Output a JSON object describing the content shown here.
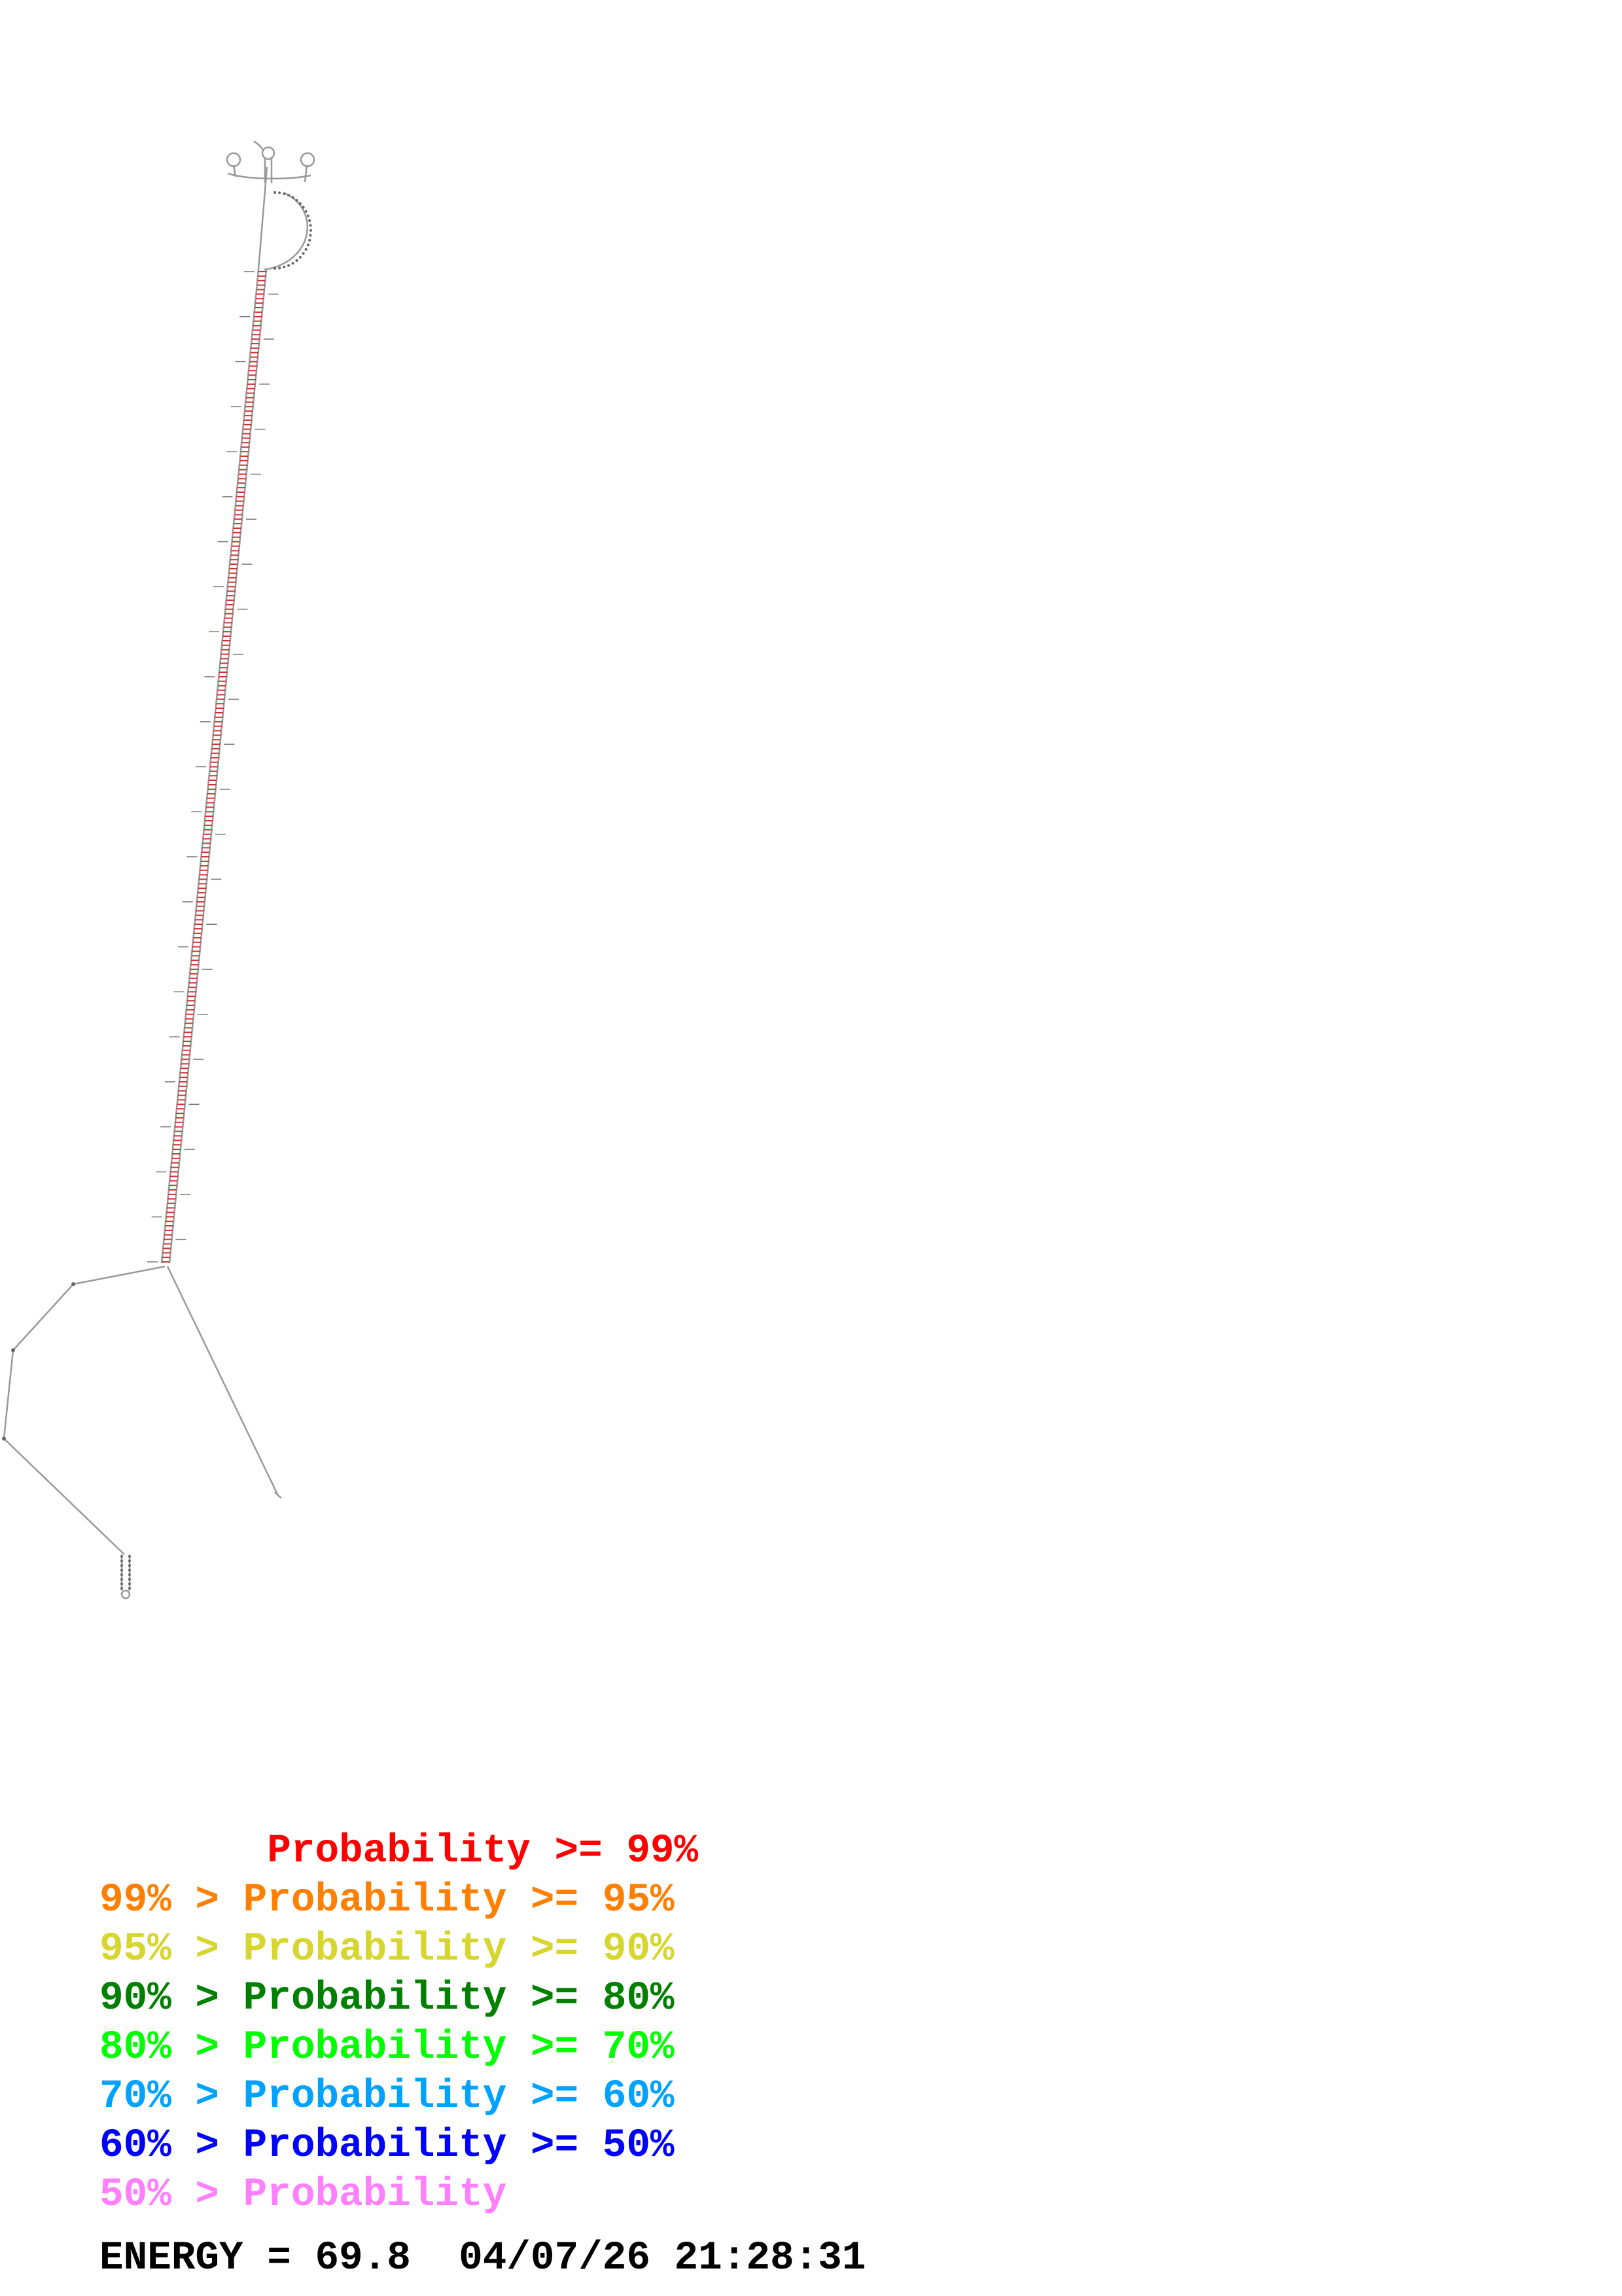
{
  "legend": [
    {
      "text": "       Probability >= 99%",
      "color": "#ff0000"
    },
    {
      "text": "99% > Probability >= 95%",
      "color": "#ff8000"
    },
    {
      "text": "95% > Probability >= 90%",
      "color": "#d6d62e"
    },
    {
      "text": "90% > Probability >= 80%",
      "color": "#008000"
    },
    {
      "text": "80% > Probability >= 70%",
      "color": "#00ff00"
    },
    {
      "text": "70% > Probability >= 60%",
      "color": "#00a2ff"
    },
    {
      "text": "60% > Probability >= 50%",
      "color": "#0000ff"
    },
    {
      "text": "50% > Probability",
      "color": "#ff80ff"
    }
  ],
  "footer": {
    "energy_label": "ENERGY = 69.8  04/07/26 21:28:31"
  },
  "colors": {
    "backbone": "#999999",
    "base_pair": "#cc3333",
    "nucleotide": "#555555"
  }
}
